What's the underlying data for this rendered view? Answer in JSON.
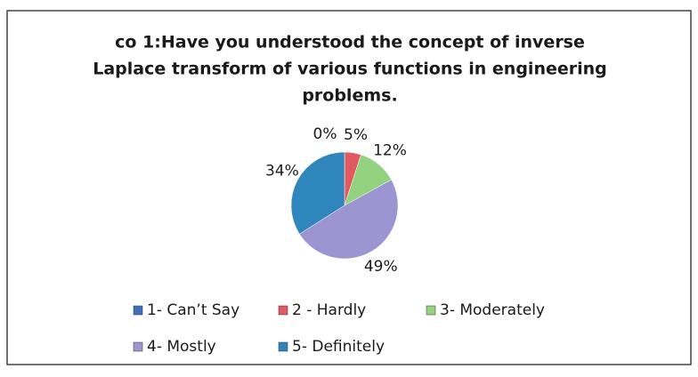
{
  "chart_data": {
    "type": "pie",
    "title": [
      "co 1:Have you understood the concept of inverse",
      "Laplace transform of various functions in engineering",
      "problems."
    ],
    "categories": [
      "1- Can’t Say",
      "2 - Hardly",
      "3- Moderately",
      "4- Mostly",
      "5- Definitely"
    ],
    "values": [
      0,
      5,
      12,
      49,
      34
    ],
    "value_labels": [
      "0%",
      "5%",
      "12%",
      "49%",
      "34%"
    ],
    "colors": [
      "#3f6fba",
      "#e05a5f",
      "#93d27e",
      "#9d94d2",
      "#2f86bd"
    ],
    "legend": "bottom"
  }
}
